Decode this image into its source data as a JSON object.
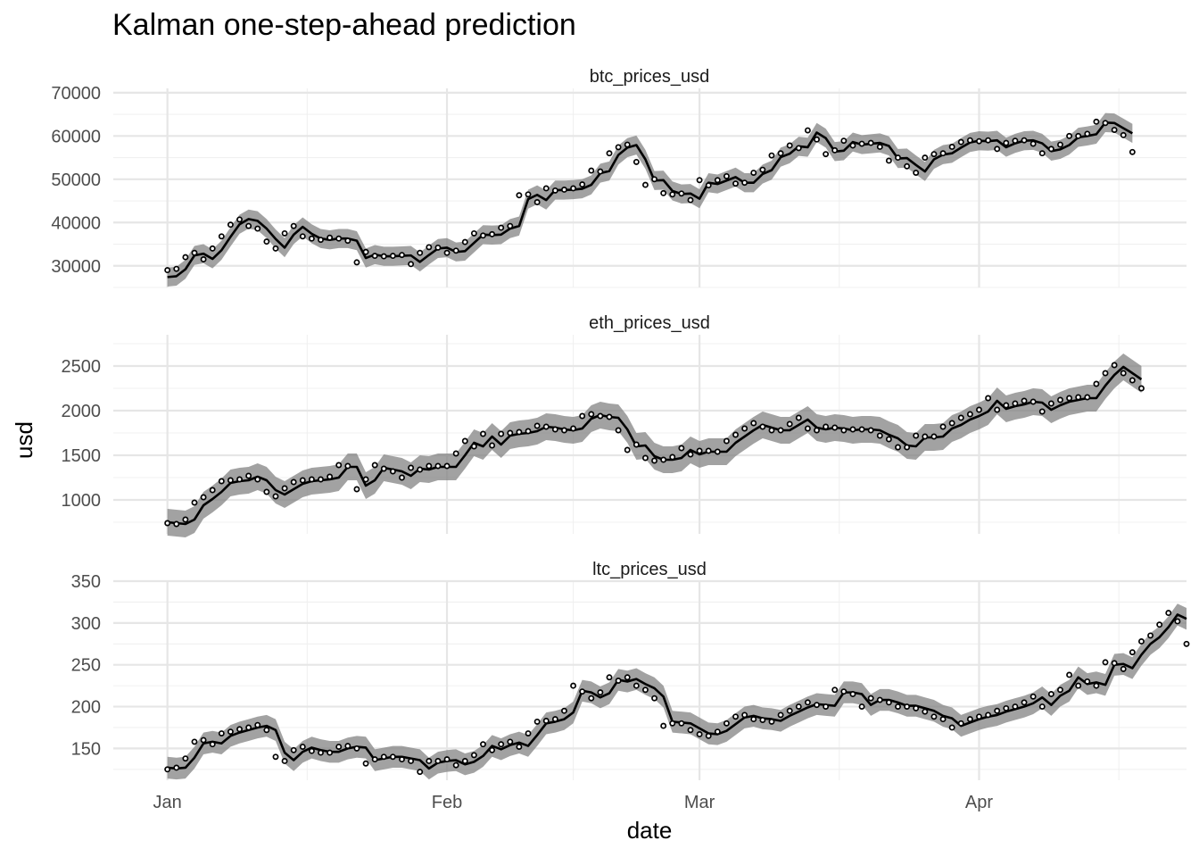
{
  "chart_data": {
    "type": "line",
    "title": "Kalman one-step-ahead prediction",
    "xlabel": "date",
    "ylabel": "usd",
    "x_tick_labels": [
      "Jan",
      "Feb",
      "Mar",
      "Apr"
    ],
    "x_tick_values": [
      "2021-01-01",
      "2021-02-01",
      "2021-03-01",
      "2021-04-01"
    ],
    "x_range": [
      "2020-12-26",
      "2021-04-24"
    ],
    "grid": true,
    "series_style": {
      "prediction": "black line",
      "interval": "grey band",
      "observed": "open circles"
    },
    "panels": [
      {
        "name": "btc_prices_usd",
        "y_ticks": [
          30000,
          40000,
          50000,
          60000,
          70000
        ],
        "ylim": [
          25000,
          71000
        ],
        "observed": [
          29000,
          29300,
          32000,
          33000,
          31500,
          34000,
          36800,
          39500,
          40700,
          39200,
          38600,
          35600,
          34000,
          37500,
          39200,
          36800,
          36300,
          36000,
          36500,
          36300,
          35800,
          30800,
          33200,
          32300,
          32200,
          32300,
          32500,
          30400,
          33000,
          34300,
          34200,
          33000,
          33500,
          35500,
          37500,
          37000,
          37300,
          38800,
          39200,
          46300,
          46500,
          44700,
          47900,
          47400,
          47600,
          47900,
          48800,
          52000,
          51800,
          56000,
          57400,
          58000,
          54000,
          48700,
          50000,
          46800,
          46500,
          46700,
          45200,
          49800,
          48600,
          49800,
          50700,
          49000,
          49200,
          51500,
          52200,
          55500,
          56000,
          57800,
          57200,
          61300,
          59200,
          55800,
          56700,
          58900,
          57800,
          58200,
          58400,
          57500,
          54300,
          55000,
          53000,
          51500,
          55000,
          55800,
          56000,
          57500,
          58600,
          59000,
          58800,
          59000,
          57000,
          58400,
          58900,
          59000,
          58200,
          56000,
          57000,
          58000,
          60000,
          60000,
          60500,
          63300,
          63000,
          61400,
          60200,
          56300
        ],
        "pred": [
          27400,
          27600,
          29200,
          32400,
          32800,
          31600,
          33600,
          36700,
          39600,
          40800,
          40400,
          38600,
          36200,
          34200,
          37200,
          39000,
          37400,
          36300,
          36000,
          36300,
          36300,
          35800,
          31800,
          32600,
          32200,
          32200,
          32300,
          32400,
          30900,
          32500,
          34000,
          34200,
          33200,
          33400,
          35300,
          37200,
          37100,
          37200,
          38600,
          39200,
          45400,
          46400,
          45200,
          47500,
          47500,
          47600,
          47800,
          48700,
          51400,
          51900,
          55600,
          57300,
          57900,
          54600,
          49700,
          49800,
          47300,
          46600,
          46700,
          45500,
          49200,
          48900,
          49700,
          50500,
          49200,
          49200,
          51200,
          52100,
          55100,
          55900,
          57600,
          57400,
          60800,
          59500,
          56400,
          56600,
          58600,
          58000,
          58200,
          58400,
          57700,
          54800,
          54900,
          53300,
          51800,
          54600,
          55700,
          56000,
          57300,
          58500,
          58900,
          58800,
          59000,
          57400,
          58300,
          58900,
          59000,
          58300,
          56500,
          56900,
          57900,
          59700,
          60000,
          60400,
          63100,
          63000,
          61800,
          60600
        ],
        "band_halfwidth": 2200
      },
      {
        "name": "eth_prices_usd",
        "y_ticks": [
          1000,
          1500,
          2000,
          2500
        ],
        "ylim": [
          620,
          2850
        ],
        "observed": [
          740,
          730,
          780,
          970,
          1030,
          1110,
          1210,
          1220,
          1230,
          1270,
          1230,
          1090,
          1040,
          1130,
          1200,
          1220,
          1230,
          1230,
          1260,
          1390,
          1380,
          1120,
          1230,
          1390,
          1350,
          1320,
          1250,
          1360,
          1340,
          1380,
          1380,
          1380,
          1520,
          1660,
          1600,
          1740,
          1610,
          1740,
          1750,
          1760,
          1770,
          1830,
          1820,
          1790,
          1780,
          1800,
          1940,
          1960,
          1940,
          1930,
          1780,
          1560,
          1620,
          1470,
          1440,
          1450,
          1480,
          1580,
          1510,
          1550,
          1550,
          1540,
          1660,
          1730,
          1800,
          1860,
          1820,
          1780,
          1780,
          1850,
          1920,
          1800,
          1780,
          1820,
          1810,
          1780,
          1790,
          1790,
          1780,
          1720,
          1680,
          1590,
          1590,
          1720,
          1710,
          1710,
          1820,
          1860,
          1920,
          1960,
          2010,
          2140,
          2010,
          2060,
          2080,
          2110,
          2100,
          1990,
          2080,
          2120,
          2140,
          2150,
          2150,
          2300,
          2420,
          2510,
          2420,
          2340,
          2250
        ],
        "pred": [
          750,
          740,
          730,
          780,
          940,
          1010,
          1090,
          1190,
          1210,
          1220,
          1260,
          1220,
          1110,
          1060,
          1120,
          1180,
          1210,
          1220,
          1230,
          1250,
          1370,
          1370,
          1160,
          1220,
          1360,
          1340,
          1320,
          1270,
          1350,
          1340,
          1370,
          1370,
          1370,
          1500,
          1640,
          1600,
          1710,
          1620,
          1720,
          1740,
          1750,
          1770,
          1820,
          1810,
          1790,
          1780,
          1800,
          1910,
          1950,
          1930,
          1920,
          1790,
          1600,
          1610,
          1490,
          1450,
          1450,
          1470,
          1560,
          1510,
          1540,
          1540,
          1540,
          1640,
          1710,
          1780,
          1840,
          1810,
          1780,
          1780,
          1840,
          1900,
          1810,
          1790,
          1810,
          1800,
          1780,
          1790,
          1790,
          1780,
          1730,
          1690,
          1610,
          1600,
          1700,
          1700,
          1710,
          1800,
          1840,
          1900,
          1940,
          1990,
          2110,
          2020,
          2050,
          2070,
          2100,
          2090,
          2010,
          2060,
          2100,
          2120,
          2140,
          2140,
          2280,
          2400,
          2490,
          2420,
          2350
        ],
        "band_halfwidth": 150
      },
      {
        "name": "ltc_prices_usd",
        "y_ticks": [
          150,
          200,
          250,
          300,
          350
        ],
        "ylim": [
          112,
          350
        ],
        "observed": [
          125,
          127,
          138,
          158,
          160,
          155,
          168,
          170,
          173,
          175,
          178,
          172,
          140,
          135,
          148,
          152,
          147,
          145,
          145,
          152,
          153,
          150,
          132,
          137,
          140,
          140,
          137,
          135,
          122,
          135,
          135,
          137,
          130,
          135,
          142,
          155,
          148,
          155,
          158,
          152,
          168,
          182,
          183,
          185,
          195,
          225,
          218,
          210,
          217,
          235,
          231,
          235,
          225,
          220,
          210,
          177,
          180,
          180,
          172,
          167,
          165,
          170,
          180,
          188,
          190,
          185,
          184,
          182,
          190,
          195,
          200,
          205,
          202,
          200,
          220,
          218,
          215,
          200,
          210,
          208,
          205,
          200,
          200,
          198,
          194,
          188,
          185,
          175,
          180,
          185,
          188,
          190,
          195,
          198,
          200,
          205,
          212,
          200,
          215,
          220,
          238,
          225,
          230,
          225,
          253,
          252,
          245,
          265,
          278,
          285,
          298,
          312,
          302,
          275
        ],
        "pred": [
          127,
          126,
          127,
          139,
          156,
          158,
          156,
          165,
          169,
          172,
          175,
          177,
          172,
          145,
          136,
          146,
          151,
          148,
          146,
          146,
          150,
          152,
          151,
          136,
          138,
          140,
          140,
          138,
          136,
          126,
          133,
          135,
          136,
          131,
          134,
          141,
          153,
          149,
          154,
          157,
          153,
          166,
          180,
          182,
          185,
          193,
          219,
          217,
          211,
          216,
          232,
          230,
          233,
          227,
          222,
          212,
          182,
          181,
          180,
          174,
          168,
          167,
          171,
          179,
          187,
          189,
          186,
          185,
          183,
          189,
          194,
          199,
          203,
          202,
          201,
          217,
          217,
          215,
          202,
          208,
          208,
          205,
          201,
          201,
          198,
          195,
          189,
          186,
          177,
          181,
          185,
          188,
          190,
          194,
          197,
          200,
          204,
          211,
          202,
          213,
          219,
          235,
          227,
          229,
          226,
          250,
          251,
          246,
          262,
          275,
          283,
          295,
          310,
          305
        ],
        "band_halfwidth": 13
      }
    ]
  }
}
